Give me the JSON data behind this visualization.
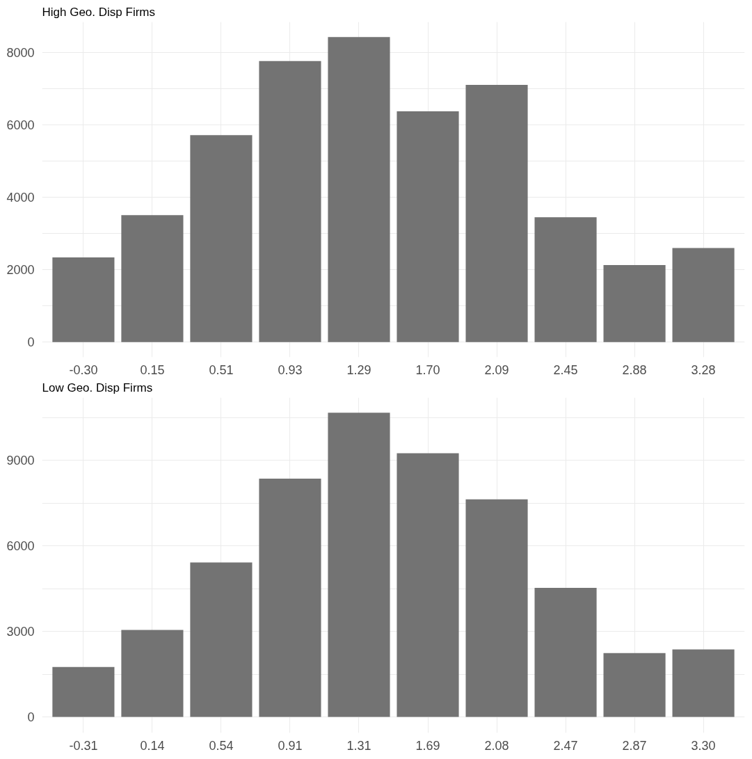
{
  "chart_data": [
    {
      "type": "bar",
      "title": "High Geo. Disp Firms",
      "categories": [
        "-0.30",
        "0.15",
        "0.51",
        "0.93",
        "1.29",
        "1.70",
        "2.09",
        "2.45",
        "2.88",
        "3.28"
      ],
      "values": [
        2340,
        3510,
        5720,
        7770,
        8430,
        6380,
        7110,
        3450,
        2130,
        2600
      ],
      "color": "#737373",
      "ylim": [
        -420,
        8850
      ],
      "yticks": [
        0,
        {
          "value": 1000,
          "label": null
        },
        2000,
        {
          "value": 3000,
          "label": null
        },
        4000,
        {
          "value": 5000,
          "label": null
        },
        6000,
        {
          "value": 7000,
          "label": null
        },
        8000
      ],
      "grid": true
    },
    {
      "type": "bar",
      "title": "Low Geo. Disp Firms",
      "categories": [
        "-0.31",
        "0.14",
        "0.54",
        "0.91",
        "1.31",
        "1.69",
        "2.08",
        "2.47",
        "2.87",
        "3.30"
      ],
      "values": [
        1750,
        3050,
        5420,
        8360,
        10670,
        9250,
        7630,
        4530,
        2240,
        2370
      ],
      "color": "#737373",
      "ylim": [
        -560,
        11200
      ],
      "yticks": [
        0,
        {
          "value": 1500,
          "label": null
        },
        3000,
        {
          "value": 4500,
          "label": null
        },
        6000,
        {
          "value": 7500,
          "label": null
        },
        9000,
        {
          "value": 10500,
          "label": null
        }
      ],
      "grid": true
    }
  ]
}
